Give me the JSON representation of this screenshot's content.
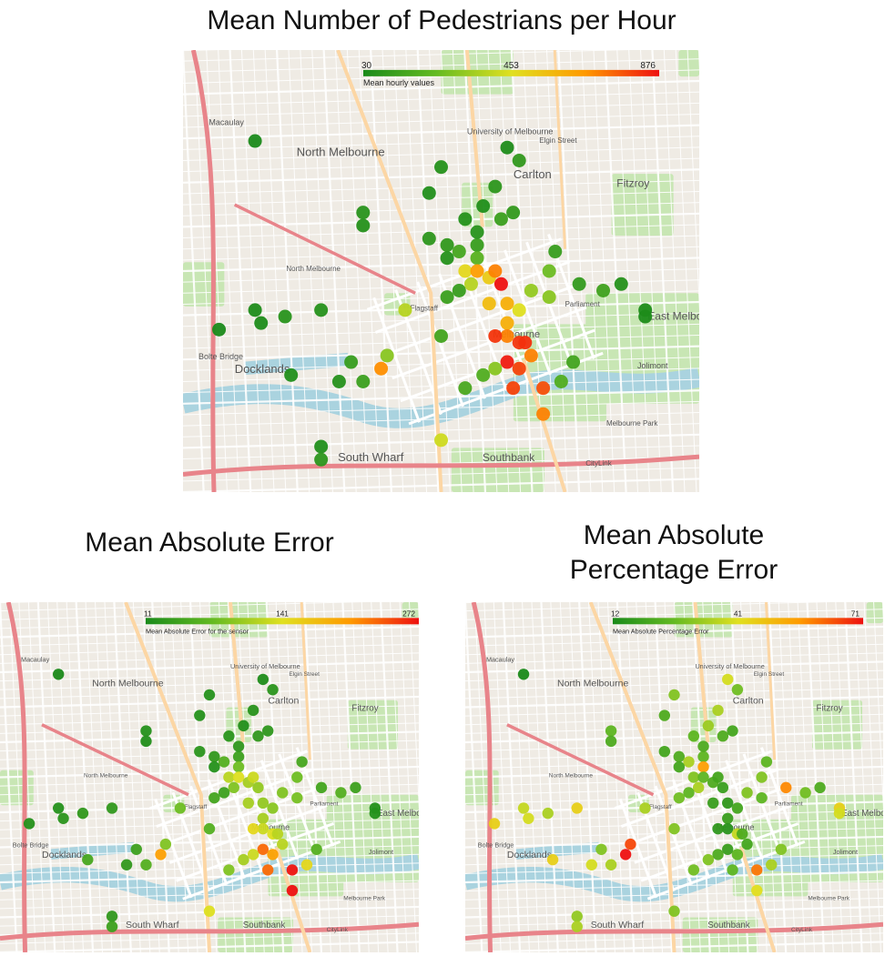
{
  "figure_title": "Mean Number of Pedestrians per Hour",
  "panels": [
    {
      "id": "main",
      "title": "Mean Number of Pedestrians per Hour",
      "legend": {
        "min": "30",
        "mid": "453",
        "max": "876",
        "caption": "Mean hourly values"
      }
    },
    {
      "id": "mae",
      "title": "Mean Absolute Error",
      "legend": {
        "min": "11",
        "mid": "141",
        "max": "272",
        "caption": "Mean Absolute Error for the sensor"
      }
    },
    {
      "id": "mape",
      "title": "Mean Absolute Percentage Error",
      "legend": {
        "min": "12",
        "mid": "41",
        "max": "71",
        "caption": "Mean Absolute Percentage Error"
      }
    }
  ],
  "map_labels": {
    "north_melbourne": "North Melbourne",
    "carlton": "Carlton",
    "fitzroy": "Fitzroy",
    "docklands": "Docklands",
    "south_wharf": "South Wharf",
    "southbank": "Southbank",
    "east_melbourne": "East Melbourne",
    "melbourne": "Melbourne",
    "university": "University of Melbourne",
    "bolte_bridge": "Bolte Bridge",
    "macaulay": "Macaulay",
    "jolimont": "Jolimont",
    "parliament": "Parliament",
    "flagstaff": "Flagstaff",
    "elgin_street": "Elgin Street",
    "citylink": "CityLink",
    "melbourne_park": "Melbourne Park",
    "north_melbourne_station": "North Melbourne"
  },
  "colors": {
    "low": "#1a8a1a",
    "midlow": "#66bb22",
    "mid": "#e0e020",
    "midhigh": "#ff9900",
    "high": "#ee1111",
    "map_bg": "#efebe4",
    "river": "#aad3df",
    "park": "#c8e6b4",
    "major_road": "#e8848a",
    "secondary_road": "#fcd6a4"
  },
  "sensors": {
    "main": [
      {
        "lon": 144.924,
        "lat": -37.796,
        "v": 30
      },
      {
        "lon": 144.955,
        "lat": -37.8,
        "v": 60
      },
      {
        "lon": 144.968,
        "lat": -37.799,
        "v": 90
      },
      {
        "lon": 144.966,
        "lat": -37.797,
        "v": 40
      },
      {
        "lon": 144.964,
        "lat": -37.803,
        "v": 80
      },
      {
        "lon": 144.962,
        "lat": -37.806,
        "v": 50
      },
      {
        "lon": 144.965,
        "lat": -37.808,
        "v": 120
      },
      {
        "lon": 144.967,
        "lat": -37.807,
        "v": 100
      },
      {
        "lon": 144.942,
        "lat": -37.807,
        "v": 70
      },
      {
        "lon": 144.942,
        "lat": -37.809,
        "v": 60
      },
      {
        "lon": 144.953,
        "lat": -37.811,
        "v": 80
      },
      {
        "lon": 144.956,
        "lat": -37.812,
        "v": 90
      },
      {
        "lon": 144.958,
        "lat": -37.813,
        "v": 150
      },
      {
        "lon": 144.961,
        "lat": -37.812,
        "v": 110
      },
      {
        "lon": 144.961,
        "lat": -37.814,
        "v": 200
      },
      {
        "lon": 144.956,
        "lat": -37.814,
        "v": 60
      },
      {
        "lon": 144.959,
        "lat": -37.816,
        "v": 480
      },
      {
        "lon": 144.961,
        "lat": -37.816,
        "v": 650
      },
      {
        "lon": 144.963,
        "lat": -37.817,
        "v": 520
      },
      {
        "lon": 144.964,
        "lat": -37.816,
        "v": 700
      },
      {
        "lon": 144.965,
        "lat": -37.818,
        "v": 876
      },
      {
        "lon": 144.96,
        "lat": -37.818,
        "v": 380
      },
      {
        "lon": 144.958,
        "lat": -37.819,
        "v": 110
      },
      {
        "lon": 144.956,
        "lat": -37.82,
        "v": 120
      },
      {
        "lon": 144.963,
        "lat": -37.821,
        "v": 560
      },
      {
        "lon": 144.966,
        "lat": -37.821,
        "v": 600
      },
      {
        "lon": 144.968,
        "lat": -37.822,
        "v": 450
      },
      {
        "lon": 144.97,
        "lat": -37.819,
        "v": 320
      },
      {
        "lon": 144.973,
        "lat": -37.82,
        "v": 300
      },
      {
        "lon": 144.973,
        "lat": -37.816,
        "v": 250
      },
      {
        "lon": 144.974,
        "lat": -37.813,
        "v": 110
      },
      {
        "lon": 144.978,
        "lat": -37.818,
        "v": 100
      },
      {
        "lon": 144.982,
        "lat": -37.819,
        "v": 130
      },
      {
        "lon": 144.985,
        "lat": -37.818,
        "v": 60
      },
      {
        "lon": 144.989,
        "lat": -37.822,
        "v": 40
      },
      {
        "lon": 144.989,
        "lat": -37.823,
        "v": 40
      },
      {
        "lon": 144.966,
        "lat": -37.824,
        "v": 600
      },
      {
        "lon": 144.966,
        "lat": -37.826,
        "v": 700
      },
      {
        "lon": 144.964,
        "lat": -37.826,
        "v": 820
      },
      {
        "lon": 144.968,
        "lat": -37.827,
        "v": 820
      },
      {
        "lon": 144.969,
        "lat": -37.827,
        "v": 830
      },
      {
        "lon": 144.97,
        "lat": -37.829,
        "v": 700
      },
      {
        "lon": 144.966,
        "lat": -37.83,
        "v": 860
      },
      {
        "lon": 144.968,
        "lat": -37.831,
        "v": 800
      },
      {
        "lon": 144.964,
        "lat": -37.831,
        "v": 300
      },
      {
        "lon": 144.962,
        "lat": -37.832,
        "v": 180
      },
      {
        "lon": 144.959,
        "lat": -37.834,
        "v": 160
      },
      {
        "lon": 144.967,
        "lat": -37.834,
        "v": 800
      },
      {
        "lon": 144.972,
        "lat": -37.834,
        "v": 780
      },
      {
        "lon": 144.975,
        "lat": -37.833,
        "v": 180
      },
      {
        "lon": 144.977,
        "lat": -37.83,
        "v": 140
      },
      {
        "lon": 144.972,
        "lat": -37.838,
        "v": 700
      },
      {
        "lon": 144.955,
        "lat": -37.826,
        "v": 140
      },
      {
        "lon": 144.946,
        "lat": -37.829,
        "v": 300
      },
      {
        "lon": 144.945,
        "lat": -37.831,
        "v": 680
      },
      {
        "lon": 144.94,
        "lat": -37.83,
        "v": 110
      },
      {
        "lon": 144.938,
        "lat": -37.833,
        "v": 60
      },
      {
        "lon": 144.942,
        "lat": -37.833,
        "v": 120
      },
      {
        "lon": 144.93,
        "lat": -37.832,
        "v": 50
      },
      {
        "lon": 144.949,
        "lat": -37.822,
        "v": 380
      },
      {
        "lon": 144.935,
        "lat": -37.822,
        "v": 60
      },
      {
        "lon": 144.929,
        "lat": -37.823,
        "v": 70
      },
      {
        "lon": 144.925,
        "lat": -37.824,
        "v": 40
      },
      {
        "lon": 144.924,
        "lat": -37.822,
        "v": 40
      },
      {
        "lon": 144.918,
        "lat": -37.825,
        "v": 30
      },
      {
        "lon": 144.935,
        "lat": -37.843,
        "v": 50
      },
      {
        "lon": 144.935,
        "lat": -37.845,
        "v": 80
      },
      {
        "lon": 144.955,
        "lat": -37.842,
        "v": 420
      },
      {
        "lon": 144.953,
        "lat": -37.804,
        "v": 50
      },
      {
        "lon": 144.959,
        "lat": -37.808,
        "v": 60
      },
      {
        "lon": 144.961,
        "lat": -37.81,
        "v": 70
      }
    ],
    "mae": [
      {
        "lon": 144.924,
        "lat": -37.796,
        "v": 11
      },
      {
        "lon": 144.955,
        "lat": -37.8,
        "v": 20
      },
      {
        "lon": 144.968,
        "lat": -37.799,
        "v": 25
      },
      {
        "lon": 144.966,
        "lat": -37.797,
        "v": 15
      },
      {
        "lon": 144.964,
        "lat": -37.803,
        "v": 22
      },
      {
        "lon": 144.962,
        "lat": -37.806,
        "v": 18
      },
      {
        "lon": 144.965,
        "lat": -37.808,
        "v": 30
      },
      {
        "lon": 144.967,
        "lat": -37.807,
        "v": 28
      },
      {
        "lon": 144.942,
        "lat": -37.807,
        "v": 20
      },
      {
        "lon": 144.942,
        "lat": -37.809,
        "v": 18
      },
      {
        "lon": 144.953,
        "lat": -37.811,
        "v": 25
      },
      {
        "lon": 144.956,
        "lat": -37.812,
        "v": 30
      },
      {
        "lon": 144.958,
        "lat": -37.813,
        "v": 60
      },
      {
        "lon": 144.961,
        "lat": -37.812,
        "v": 40
      },
      {
        "lon": 144.961,
        "lat": -37.814,
        "v": 80
      },
      {
        "lon": 144.956,
        "lat": -37.814,
        "v": 20
      },
      {
        "lon": 144.959,
        "lat": -37.816,
        "v": 120
      },
      {
        "lon": 144.961,
        "lat": -37.816,
        "v": 140
      },
      {
        "lon": 144.963,
        "lat": -37.817,
        "v": 110
      },
      {
        "lon": 144.964,
        "lat": -37.816,
        "v": 130
      },
      {
        "lon": 144.965,
        "lat": -37.818,
        "v": 100
      },
      {
        "lon": 144.96,
        "lat": -37.818,
        "v": 90
      },
      {
        "lon": 144.958,
        "lat": -37.819,
        "v": 40
      },
      {
        "lon": 144.956,
        "lat": -37.82,
        "v": 45
      },
      {
        "lon": 144.963,
        "lat": -37.821,
        "v": 110
      },
      {
        "lon": 144.966,
        "lat": -37.821,
        "v": 100
      },
      {
        "lon": 144.968,
        "lat": -37.822,
        "v": 95
      },
      {
        "lon": 144.97,
        "lat": -37.819,
        "v": 90
      },
      {
        "lon": 144.973,
        "lat": -37.82,
        "v": 85
      },
      {
        "lon": 144.973,
        "lat": -37.816,
        "v": 80
      },
      {
        "lon": 144.974,
        "lat": -37.813,
        "v": 50
      },
      {
        "lon": 144.978,
        "lat": -37.818,
        "v": 45
      },
      {
        "lon": 144.982,
        "lat": -37.819,
        "v": 60
      },
      {
        "lon": 144.985,
        "lat": -37.818,
        "v": 40
      },
      {
        "lon": 144.989,
        "lat": -37.822,
        "v": 20
      },
      {
        "lon": 144.989,
        "lat": -37.823,
        "v": 20
      },
      {
        "lon": 144.966,
        "lat": -37.824,
        "v": 110
      },
      {
        "lon": 144.966,
        "lat": -37.826,
        "v": 130
      },
      {
        "lon": 144.964,
        "lat": -37.826,
        "v": 150
      },
      {
        "lon": 144.968,
        "lat": -37.827,
        "v": 140
      },
      {
        "lon": 144.969,
        "lat": -37.827,
        "v": 120
      },
      {
        "lon": 144.97,
        "lat": -37.829,
        "v": 120
      },
      {
        "lon": 144.966,
        "lat": -37.83,
        "v": 230
      },
      {
        "lon": 144.968,
        "lat": -37.831,
        "v": 200
      },
      {
        "lon": 144.964,
        "lat": -37.831,
        "v": 130
      },
      {
        "lon": 144.962,
        "lat": -37.832,
        "v": 110
      },
      {
        "lon": 144.959,
        "lat": -37.834,
        "v": 90
      },
      {
        "lon": 144.967,
        "lat": -37.834,
        "v": 230
      },
      {
        "lon": 144.972,
        "lat": -37.834,
        "v": 270
      },
      {
        "lon": 144.975,
        "lat": -37.833,
        "v": 150
      },
      {
        "lon": 144.977,
        "lat": -37.83,
        "v": 60
      },
      {
        "lon": 144.972,
        "lat": -37.838,
        "v": 272
      },
      {
        "lon": 144.955,
        "lat": -37.826,
        "v": 60
      },
      {
        "lon": 144.946,
        "lat": -37.829,
        "v": 90
      },
      {
        "lon": 144.945,
        "lat": -37.831,
        "v": 200
      },
      {
        "lon": 144.94,
        "lat": -37.83,
        "v": 40
      },
      {
        "lon": 144.938,
        "lat": -37.833,
        "v": 30
      },
      {
        "lon": 144.942,
        "lat": -37.833,
        "v": 60
      },
      {
        "lon": 144.93,
        "lat": -37.832,
        "v": 50
      },
      {
        "lon": 144.949,
        "lat": -37.822,
        "v": 80
      },
      {
        "lon": 144.935,
        "lat": -37.822,
        "v": 30
      },
      {
        "lon": 144.929,
        "lat": -37.823,
        "v": 30
      },
      {
        "lon": 144.925,
        "lat": -37.824,
        "v": 25
      },
      {
        "lon": 144.924,
        "lat": -37.822,
        "v": 20
      },
      {
        "lon": 144.918,
        "lat": -37.825,
        "v": 20
      },
      {
        "lon": 144.935,
        "lat": -37.843,
        "v": 30
      },
      {
        "lon": 144.935,
        "lat": -37.845,
        "v": 40
      },
      {
        "lon": 144.955,
        "lat": -37.842,
        "v": 140
      },
      {
        "lon": 144.953,
        "lat": -37.804,
        "v": 20
      },
      {
        "lon": 144.959,
        "lat": -37.808,
        "v": 25
      },
      {
        "lon": 144.961,
        "lat": -37.81,
        "v": 28
      }
    ],
    "mape": [
      {
        "lon": 144.924,
        "lat": -37.796,
        "v": 12
      },
      {
        "lon": 144.955,
        "lat": -37.8,
        "v": 30
      },
      {
        "lon": 144.968,
        "lat": -37.799,
        "v": 28
      },
      {
        "lon": 144.966,
        "lat": -37.797,
        "v": 40
      },
      {
        "lon": 144.964,
        "lat": -37.803,
        "v": 35
      },
      {
        "lon": 144.962,
        "lat": -37.806,
        "v": 33
      },
      {
        "lon": 144.965,
        "lat": -37.808,
        "v": 22
      },
      {
        "lon": 144.967,
        "lat": -37.807,
        "v": 20
      },
      {
        "lon": 144.942,
        "lat": -37.807,
        "v": 25
      },
      {
        "lon": 144.942,
        "lat": -37.809,
        "v": 22
      },
      {
        "lon": 144.953,
        "lat": -37.811,
        "v": 20
      },
      {
        "lon": 144.956,
        "lat": -37.812,
        "v": 22
      },
      {
        "lon": 144.958,
        "lat": -37.813,
        "v": 35
      },
      {
        "lon": 144.961,
        "lat": -37.812,
        "v": 25
      },
      {
        "lon": 144.961,
        "lat": -37.814,
        "v": 55
      },
      {
        "lon": 144.956,
        "lat": -37.814,
        "v": 20
      },
      {
        "lon": 144.959,
        "lat": -37.816,
        "v": 30
      },
      {
        "lon": 144.961,
        "lat": -37.816,
        "v": 25
      },
      {
        "lon": 144.963,
        "lat": -37.817,
        "v": 22
      },
      {
        "lon": 144.964,
        "lat": -37.816,
        "v": 20
      },
      {
        "lon": 144.965,
        "lat": -37.818,
        "v": 18
      },
      {
        "lon": 144.96,
        "lat": -37.818,
        "v": 35
      },
      {
        "lon": 144.958,
        "lat": -37.819,
        "v": 25
      },
      {
        "lon": 144.956,
        "lat": -37.82,
        "v": 28
      },
      {
        "lon": 144.963,
        "lat": -37.821,
        "v": 18
      },
      {
        "lon": 144.966,
        "lat": -37.821,
        "v": 16
      },
      {
        "lon": 144.968,
        "lat": -37.822,
        "v": 20
      },
      {
        "lon": 144.97,
        "lat": -37.819,
        "v": 30
      },
      {
        "lon": 144.973,
        "lat": -37.82,
        "v": 25
      },
      {
        "lon": 144.973,
        "lat": -37.816,
        "v": 30
      },
      {
        "lon": 144.974,
        "lat": -37.813,
        "v": 25
      },
      {
        "lon": 144.978,
        "lat": -37.818,
        "v": 58
      },
      {
        "lon": 144.982,
        "lat": -37.819,
        "v": 28
      },
      {
        "lon": 144.985,
        "lat": -37.818,
        "v": 22
      },
      {
        "lon": 144.989,
        "lat": -37.822,
        "v": 45
      },
      {
        "lon": 144.989,
        "lat": -37.823,
        "v": 40
      },
      {
        "lon": 144.966,
        "lat": -37.824,
        "v": 18
      },
      {
        "lon": 144.966,
        "lat": -37.826,
        "v": 15
      },
      {
        "lon": 144.964,
        "lat": -37.826,
        "v": 16
      },
      {
        "lon": 144.968,
        "lat": -37.827,
        "v": 38
      },
      {
        "lon": 144.969,
        "lat": -37.827,
        "v": 22
      },
      {
        "lon": 144.97,
        "lat": -37.829,
        "v": 20
      },
      {
        "lon": 144.966,
        "lat": -37.83,
        "v": 18
      },
      {
        "lon": 144.968,
        "lat": -37.831,
        "v": 25
      },
      {
        "lon": 144.964,
        "lat": -37.831,
        "v": 22
      },
      {
        "lon": 144.962,
        "lat": -37.832,
        "v": 30
      },
      {
        "lon": 144.959,
        "lat": -37.834,
        "v": 28
      },
      {
        "lon": 144.967,
        "lat": -37.834,
        "v": 25
      },
      {
        "lon": 144.972,
        "lat": -37.834,
        "v": 60
      },
      {
        "lon": 144.975,
        "lat": -37.833,
        "v": 35
      },
      {
        "lon": 144.977,
        "lat": -37.83,
        "v": 30
      },
      {
        "lon": 144.972,
        "lat": -37.838,
        "v": 42
      },
      {
        "lon": 144.955,
        "lat": -37.826,
        "v": 30
      },
      {
        "lon": 144.946,
        "lat": -37.829,
        "v": 65
      },
      {
        "lon": 144.945,
        "lat": -37.831,
        "v": 71
      },
      {
        "lon": 144.94,
        "lat": -37.83,
        "v": 30
      },
      {
        "lon": 144.938,
        "lat": -37.833,
        "v": 40
      },
      {
        "lon": 144.942,
        "lat": -37.833,
        "v": 35
      },
      {
        "lon": 144.93,
        "lat": -37.832,
        "v": 45
      },
      {
        "lon": 144.949,
        "lat": -37.822,
        "v": 35
      },
      {
        "lon": 144.935,
        "lat": -37.822,
        "v": 45
      },
      {
        "lon": 144.929,
        "lat": -37.823,
        "v": 35
      },
      {
        "lon": 144.925,
        "lat": -37.824,
        "v": 40
      },
      {
        "lon": 144.924,
        "lat": -37.822,
        "v": 38
      },
      {
        "lon": 144.918,
        "lat": -37.825,
        "v": 45
      },
      {
        "lon": 144.935,
        "lat": -37.843,
        "v": 32
      },
      {
        "lon": 144.935,
        "lat": -37.845,
        "v": 35
      },
      {
        "lon": 144.955,
        "lat": -37.842,
        "v": 30
      },
      {
        "lon": 144.953,
        "lat": -37.804,
        "v": 22
      },
      {
        "lon": 144.959,
        "lat": -37.808,
        "v": 25
      },
      {
        "lon": 144.961,
        "lat": -37.81,
        "v": 22
      }
    ]
  }
}
